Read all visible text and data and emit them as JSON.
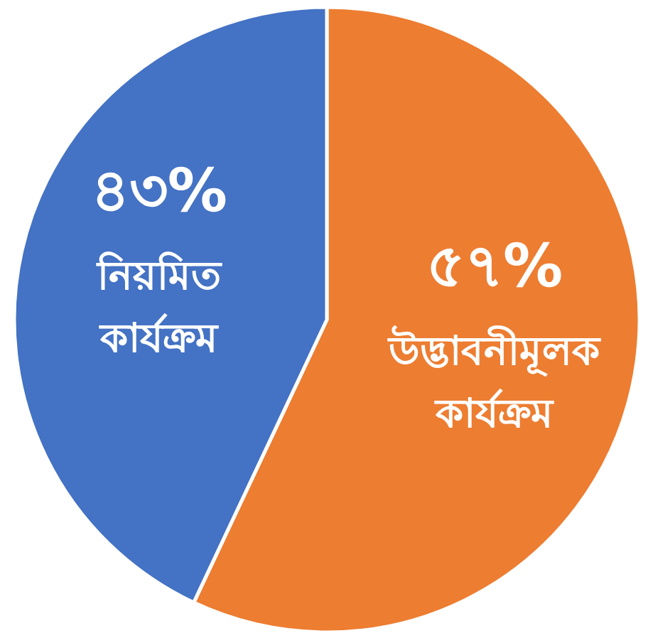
{
  "chart_data": {
    "type": "pie",
    "categories": [
      "উদ্ভাবনীমূলক কার্যক্রম",
      "নিয়মিত কার্যক্রম"
    ],
    "values": [
      57,
      43
    ],
    "colors": [
      "#ed7d31",
      "#4472c4"
    ],
    "value_labels": [
      "৫৭%",
      "৪৩%"
    ],
    "legend": false
  }
}
